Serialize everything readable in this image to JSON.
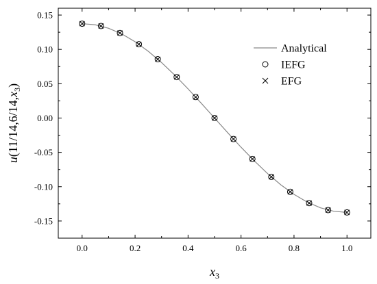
{
  "chart_data": {
    "type": "line",
    "xlabel": {
      "main": "x",
      "sub": "3"
    },
    "ylabel": {
      "pre": "u",
      "text": "(11/14,6/14,",
      "var": "x",
      "sub": "3",
      "post": ")"
    },
    "xlim": [
      -0.09,
      1.09
    ],
    "ylim": [
      -0.175,
      0.16
    ],
    "xticks": [
      0.0,
      0.2,
      0.4,
      0.6,
      0.8,
      1.0
    ],
    "xtick_labels": [
      "0.0",
      "0.2",
      "0.4",
      "0.6",
      "0.8",
      "1.0"
    ],
    "yticks": [
      -0.15,
      -0.1,
      -0.05,
      0.0,
      0.05,
      0.1,
      0.15
    ],
    "ytick_labels": [
      "-0.15",
      "-0.10",
      "-0.05",
      "0.00",
      "0.05",
      "0.10",
      "0.15"
    ],
    "legend_position": "top-right",
    "grid": false,
    "series": [
      {
        "name": "Analytical",
        "style": "line",
        "x": [
          0.0,
          0.05,
          0.1,
          0.15,
          0.2,
          0.25,
          0.3,
          0.35,
          0.4,
          0.45,
          0.5,
          0.55,
          0.6,
          0.65,
          0.7,
          0.75,
          0.8,
          0.85,
          0.9,
          0.95,
          1.0
        ],
        "y": [
          0.1375,
          0.1358,
          0.1308,
          0.1225,
          0.1112,
          0.0972,
          0.0808,
          0.0624,
          0.0425,
          0.0215,
          0.0,
          -0.0215,
          -0.0425,
          -0.0624,
          -0.0808,
          -0.0972,
          -0.1112,
          -0.1225,
          -0.1308,
          -0.1358,
          -0.1375
        ]
      },
      {
        "name": "IEFG",
        "style": "circle",
        "x": [
          0.0,
          0.0714,
          0.1429,
          0.2143,
          0.2857,
          0.3571,
          0.4286,
          0.5,
          0.5714,
          0.6429,
          0.7143,
          0.7857,
          0.8571,
          0.9286,
          1.0
        ],
        "y": [
          0.1375,
          0.1341,
          0.1239,
          0.1075,
          0.0857,
          0.0597,
          0.0306,
          0.0,
          -0.0306,
          -0.0597,
          -0.0857,
          -0.1075,
          -0.1239,
          -0.1341,
          -0.1375
        ]
      },
      {
        "name": "EFG",
        "style": "cross",
        "x": [
          0.0,
          0.0714,
          0.1429,
          0.2143,
          0.2857,
          0.3571,
          0.4286,
          0.5,
          0.5714,
          0.6429,
          0.7143,
          0.7857,
          0.8571,
          0.9286,
          1.0
        ],
        "y": [
          0.1375,
          0.1341,
          0.1239,
          0.1075,
          0.0857,
          0.0597,
          0.0306,
          0.0,
          -0.0306,
          -0.0597,
          -0.0857,
          -0.1075,
          -0.1239,
          -0.1341,
          -0.1375
        ]
      }
    ],
    "colors": {
      "line": "#888888",
      "marker": "#000000",
      "axis": "#000000"
    }
  }
}
